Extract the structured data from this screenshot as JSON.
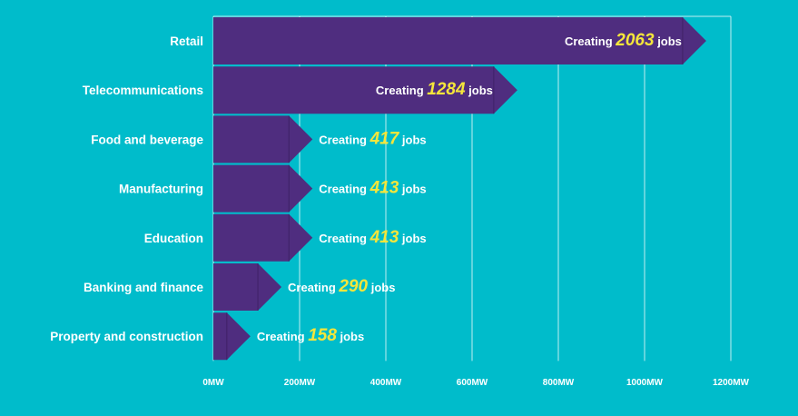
{
  "chart_data": {
    "type": "bar",
    "orientation": "horizontal",
    "categories": [
      "Retail",
      "Telecommunications",
      "Food and beverage",
      "Manufacturing",
      "Education",
      "Banking and finance",
      "Property and construction"
    ],
    "values": [
      1143,
      705,
      230,
      230,
      230,
      158,
      86
    ],
    "jobs": [
      2063,
      1284,
      417,
      413,
      413,
      290,
      158
    ],
    "label_prefix": "Creating",
    "label_suffix": "jobs",
    "x_ticks": [
      "0MW",
      "200MW",
      "400MW",
      "600MW",
      "800MW",
      "1000MW",
      "1200MW"
    ],
    "xlim": [
      0,
      1200
    ],
    "grid": true,
    "colors": {
      "background": "#00bccb",
      "bar": "#4f2d7f",
      "bar_shade": "#3f2167",
      "grid": "#ffffff",
      "text": "#ffffff",
      "number": "#f5e63b"
    }
  }
}
